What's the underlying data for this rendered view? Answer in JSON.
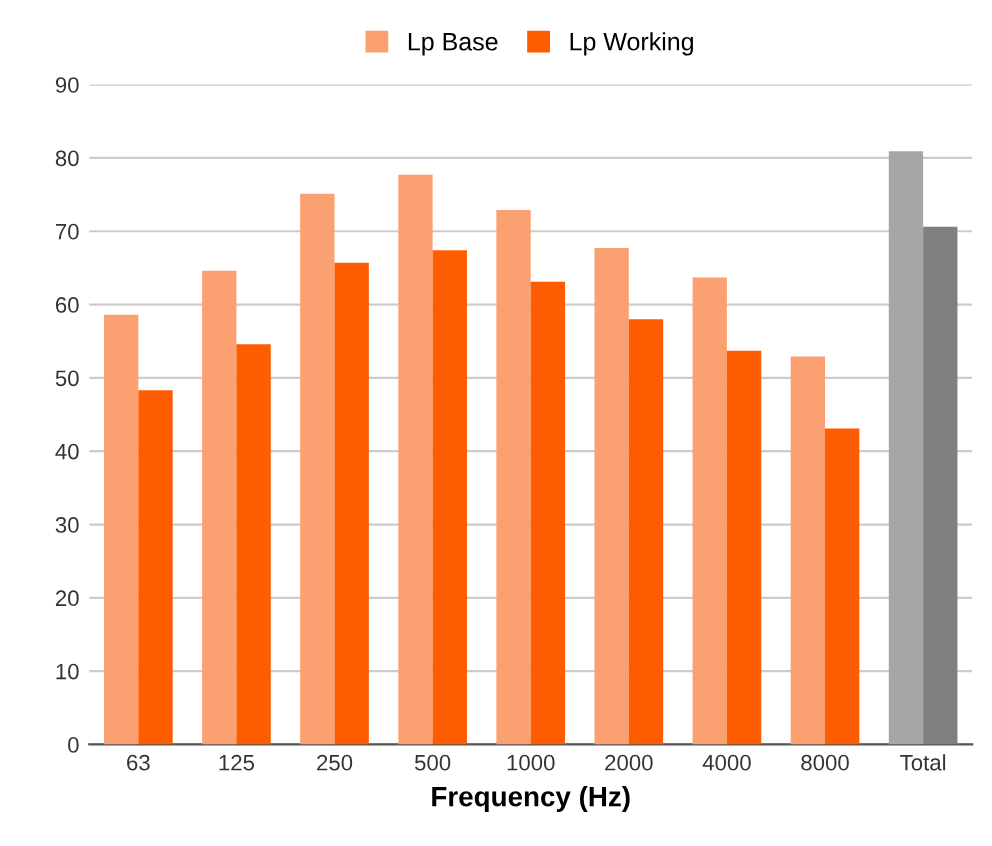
{
  "chart_data": {
    "type": "bar",
    "xlabel": "Frequency (Hz)",
    "categories": [
      "63",
      "125",
      "250",
      "500",
      "1000",
      "2000",
      "4000",
      "8000",
      "Total"
    ],
    "series": [
      {
        "name": "Lp Base",
        "color": "#fba171",
        "colors": [
          "#fba171",
          "#fba171",
          "#fba171",
          "#fba171",
          "#fba171",
          "#fba171",
          "#fba171",
          "#fba171",
          "#a6a6a6"
        ],
        "values": [
          58.6,
          64.6,
          75.1,
          77.7,
          72.9,
          67.7,
          63.7,
          52.9,
          80.9
        ]
      },
      {
        "name": "Lp Working",
        "color": "#fe5c00",
        "colors": [
          "#fe5c00",
          "#fe5c00",
          "#fe5c00",
          "#fe5c00",
          "#fe5c00",
          "#fe5c00",
          "#fe5c00",
          "#fe5c00",
          "#7f7f7f"
        ],
        "values": [
          48.3,
          54.6,
          65.7,
          67.4,
          63.1,
          58.0,
          53.7,
          43.1,
          70.6
        ]
      }
    ],
    "ylim": [
      0,
      90
    ],
    "yticks": [
      0,
      10,
      20,
      30,
      40,
      50,
      60,
      70,
      80,
      90
    ],
    "grid": "y",
    "legend": "top"
  }
}
